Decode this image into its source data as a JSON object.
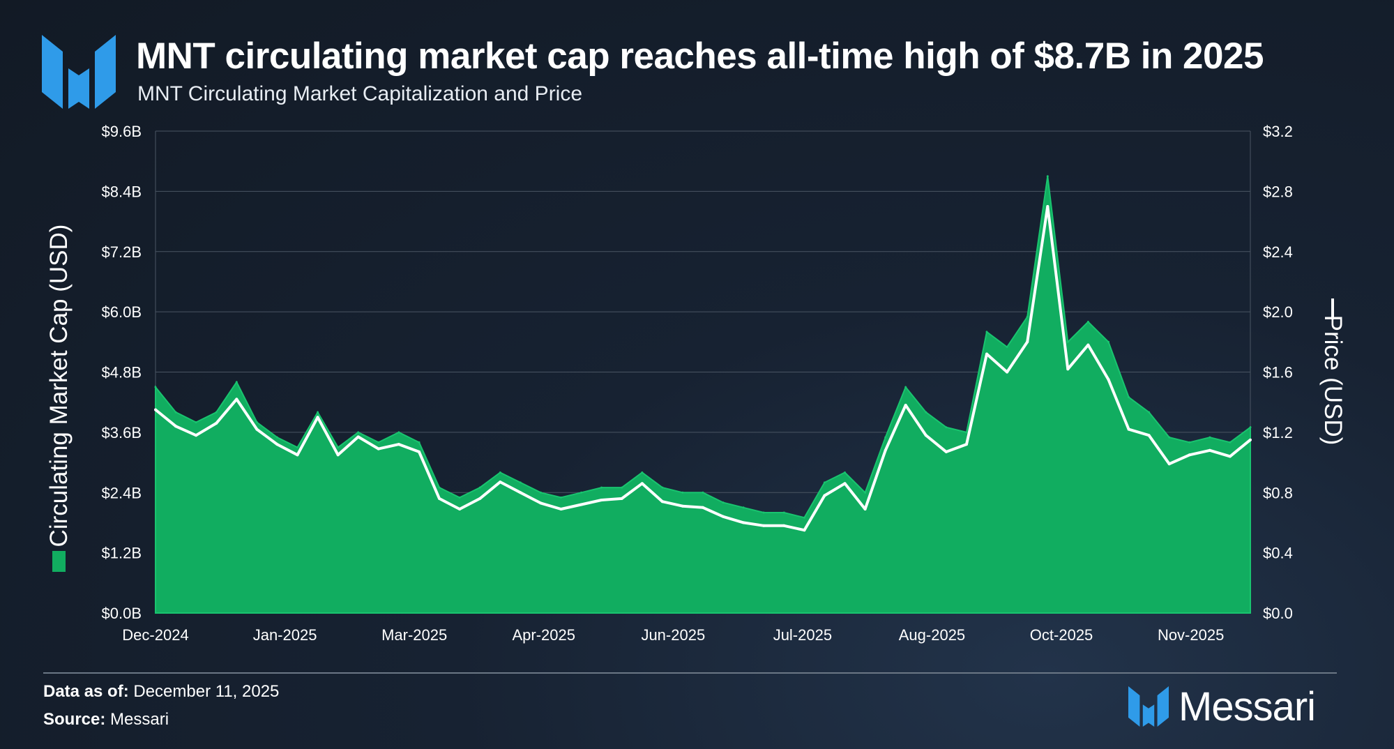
{
  "header": {
    "title": "MNT circulating market cap reaches all-time high of $8.7B in 2025",
    "subtitle": "MNT Circulating Market Capitalization and Price"
  },
  "footer": {
    "data_as_of_label": "Data as of:",
    "data_as_of_value": "December 11, 2025",
    "source_label": "Source:",
    "source_value": "Messari",
    "brand_name": "Messari"
  },
  "colors": {
    "market_cap_fill": "#11ad60",
    "market_cap_edge": "#19c46f",
    "price_line": "#ffffff",
    "logo_blue": "#2f9be9",
    "grid": "#4a5563"
  },
  "chart_data": {
    "type": "area",
    "title": "MNT Circulating Market Capitalization and Price",
    "xlabel": "",
    "ylabel": "Circulating Market Cap (USD)",
    "y2label": "Price (USD)",
    "ylim": [
      0,
      9.6
    ],
    "y2lim": [
      0,
      3.2
    ],
    "y_ticks": [
      "$0.0B",
      "$1.2B",
      "$2.4B",
      "$3.6B",
      "$4.8B",
      "$6.0B",
      "$7.2B",
      "$8.4B",
      "$9.6B"
    ],
    "y2_ticks": [
      "$0.0",
      "$0.4",
      "$0.8",
      "$1.2",
      "$1.6",
      "$2.0",
      "$2.4",
      "$2.8",
      "$3.2"
    ],
    "x_ticks": [
      "Dec-2024",
      "Jan-2025",
      "Mar-2025",
      "Apr-2025",
      "Jun-2025",
      "Jul-2025",
      "Aug-2025",
      "Oct-2025",
      "Nov-2025"
    ],
    "x": [
      "2024-12-01",
      "2024-12-08",
      "2024-12-15",
      "2024-12-22",
      "2024-12-29",
      "2025-01-05",
      "2025-01-12",
      "2025-01-19",
      "2025-01-26",
      "2025-02-02",
      "2025-02-09",
      "2025-02-16",
      "2025-02-23",
      "2025-03-02",
      "2025-03-09",
      "2025-03-16",
      "2025-03-23",
      "2025-03-30",
      "2025-04-06",
      "2025-04-13",
      "2025-04-20",
      "2025-04-27",
      "2025-05-04",
      "2025-05-11",
      "2025-05-18",
      "2025-05-25",
      "2025-06-01",
      "2025-06-08",
      "2025-06-15",
      "2025-06-22",
      "2025-06-29",
      "2025-07-06",
      "2025-07-13",
      "2025-07-20",
      "2025-07-27",
      "2025-08-03",
      "2025-08-10",
      "2025-08-17",
      "2025-08-24",
      "2025-08-31",
      "2025-09-07",
      "2025-09-14",
      "2025-09-21",
      "2025-09-28",
      "2025-10-05",
      "2025-10-12",
      "2025-10-19",
      "2025-10-26",
      "2025-11-02",
      "2025-11-09",
      "2025-11-16",
      "2025-11-23",
      "2025-11-30",
      "2025-12-07",
      "2025-12-11"
    ],
    "series": [
      {
        "name": "Circulating Market Cap (USD)",
        "axis": "left",
        "unit": "$B",
        "values": [
          4.5,
          4.0,
          3.8,
          4.0,
          4.6,
          3.8,
          3.5,
          3.3,
          4.0,
          3.3,
          3.6,
          3.4,
          3.6,
          3.4,
          2.5,
          2.3,
          2.5,
          2.8,
          2.6,
          2.4,
          2.3,
          2.4,
          2.5,
          2.5,
          2.8,
          2.5,
          2.4,
          2.4,
          2.2,
          2.1,
          2.0,
          2.0,
          1.9,
          2.6,
          2.8,
          2.4,
          3.5,
          4.5,
          4.0,
          3.7,
          3.6,
          5.6,
          5.3,
          5.9,
          8.7,
          5.4,
          5.8,
          5.4,
          4.3,
          4.0,
          3.5,
          3.4,
          3.5,
          3.4,
          3.7
        ]
      },
      {
        "name": "Price (USD)",
        "axis": "right",
        "unit": "$",
        "values": [
          1.35,
          1.24,
          1.18,
          1.26,
          1.42,
          1.22,
          1.12,
          1.05,
          1.3,
          1.05,
          1.17,
          1.09,
          1.12,
          1.07,
          0.76,
          0.69,
          0.76,
          0.87,
          0.8,
          0.73,
          0.69,
          0.72,
          0.75,
          0.76,
          0.86,
          0.74,
          0.71,
          0.7,
          0.64,
          0.6,
          0.58,
          0.58,
          0.55,
          0.78,
          0.86,
          0.69,
          1.08,
          1.38,
          1.18,
          1.07,
          1.12,
          1.72,
          1.6,
          1.8,
          2.7,
          1.62,
          1.78,
          1.55,
          1.22,
          1.18,
          0.99,
          1.05,
          1.08,
          1.04,
          1.15
        ]
      }
    ]
  }
}
